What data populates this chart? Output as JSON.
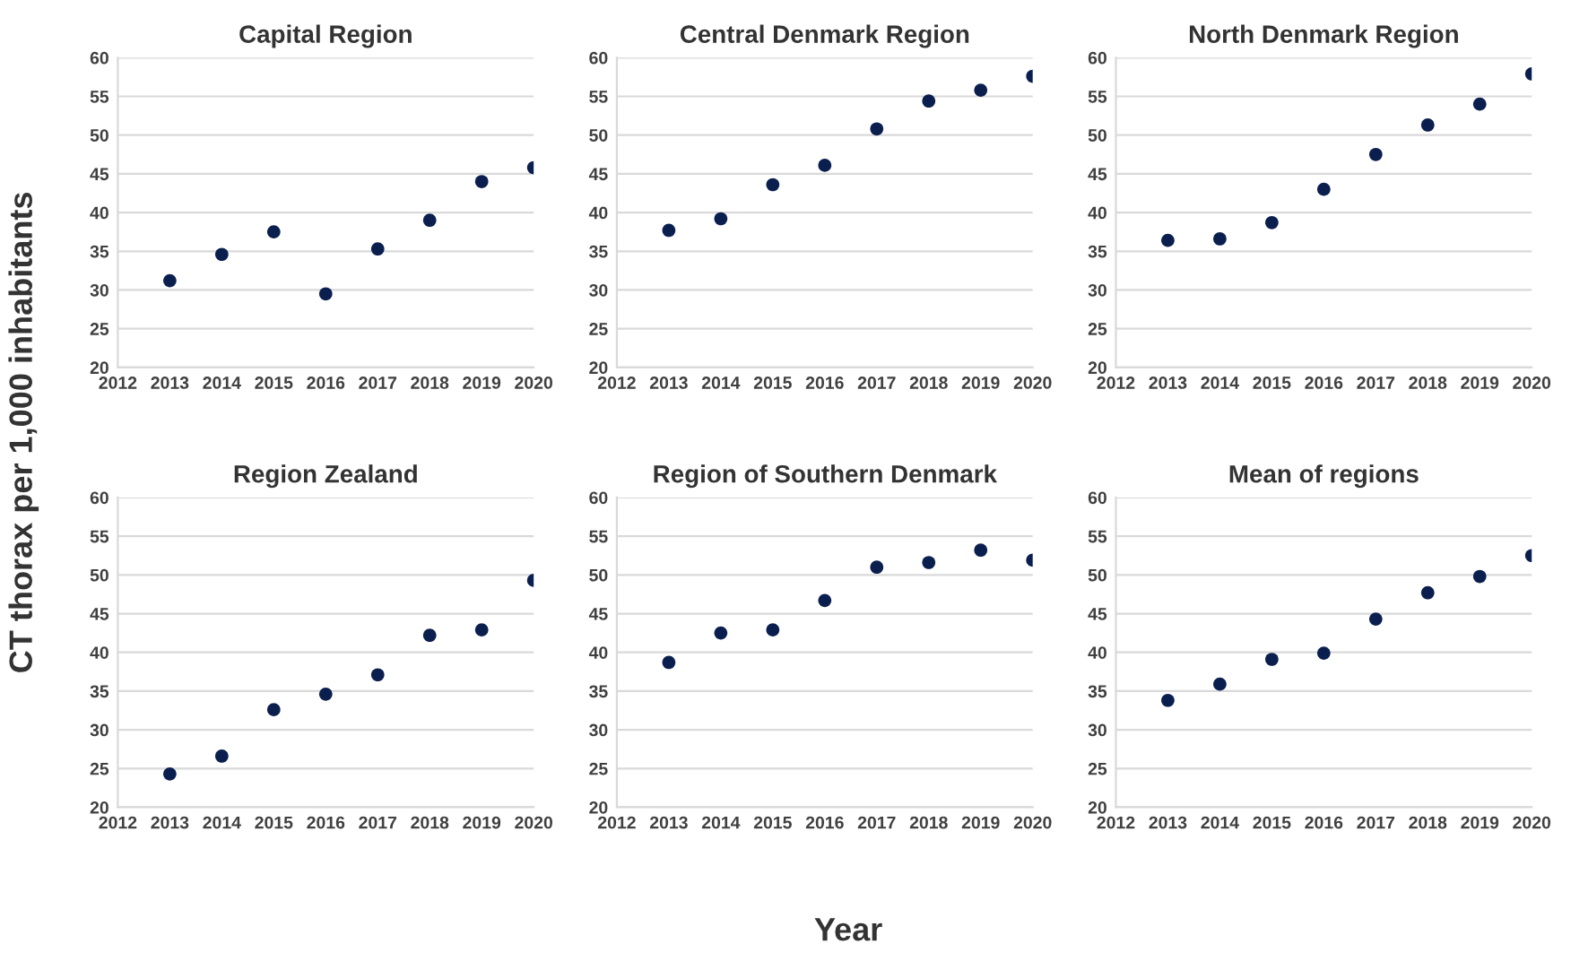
{
  "chart_data": [
    {
      "type": "scatter",
      "title": "Capital Region",
      "ylabel": "CT thorax per 1,000 inhabitants",
      "x": [
        2013,
        2014,
        2015,
        2016,
        2017,
        2018,
        2019,
        2020
      ],
      "series": [
        {
          "color": "#0b1f4f",
          "values": [
            31.2,
            34.6,
            37.5,
            29.5,
            35.3,
            39.0,
            44.0,
            45.8
          ]
        }
      ],
      "xlim": [
        2012,
        2020
      ],
      "xticks": [
        2012,
        2013,
        2014,
        2015,
        2016,
        2017,
        2018,
        2019,
        2020
      ],
      "ylim": [
        20,
        60
      ],
      "yticks": [
        20,
        25,
        30,
        35,
        40,
        45,
        50,
        55,
        60
      ],
      "grid": "y",
      "marker": "circle"
    },
    {
      "type": "scatter",
      "title": "Central Denmark Region",
      "x": [
        2013,
        2014,
        2015,
        2016,
        2017,
        2018,
        2019,
        2020
      ],
      "series": [
        {
          "color": "#0b1f4f",
          "values": [
            37.7,
            39.2,
            43.6,
            46.1,
            50.8,
            54.4,
            55.8,
            57.6
          ]
        }
      ],
      "xlim": [
        2012,
        2020
      ],
      "xticks": [
        2012,
        2013,
        2014,
        2015,
        2016,
        2017,
        2018,
        2019,
        2020
      ],
      "ylim": [
        20,
        60
      ],
      "yticks": [
        20,
        25,
        30,
        35,
        40,
        45,
        50,
        55,
        60
      ],
      "grid": "y",
      "marker": "circle"
    },
    {
      "type": "scatter",
      "title": "North Denmark Region",
      "x": [
        2013,
        2014,
        2015,
        2016,
        2017,
        2018,
        2019,
        2020
      ],
      "series": [
        {
          "color": "#0b1f4f",
          "values": [
            36.4,
            36.6,
            38.7,
            43.0,
            47.5,
            51.3,
            54.0,
            57.9
          ]
        }
      ],
      "xlim": [
        2012,
        2020
      ],
      "xticks": [
        2012,
        2013,
        2014,
        2015,
        2016,
        2017,
        2018,
        2019,
        2020
      ],
      "ylim": [
        20,
        60
      ],
      "yticks": [
        20,
        25,
        30,
        35,
        40,
        45,
        50,
        55,
        60
      ],
      "grid": "y",
      "marker": "circle"
    },
    {
      "type": "scatter",
      "title": "Region Zealand",
      "x": [
        2013,
        2014,
        2015,
        2016,
        2017,
        2018,
        2019,
        2020
      ],
      "series": [
        {
          "color": "#0b1f4f",
          "values": [
            24.3,
            26.6,
            32.6,
            34.6,
            37.1,
            42.2,
            42.9,
            49.3
          ]
        }
      ],
      "xlim": [
        2012,
        2020
      ],
      "xticks": [
        2012,
        2013,
        2014,
        2015,
        2016,
        2017,
        2018,
        2019,
        2020
      ],
      "ylim": [
        20,
        60
      ],
      "yticks": [
        20,
        25,
        30,
        35,
        40,
        45,
        50,
        55,
        60
      ],
      "grid": "y",
      "marker": "circle"
    },
    {
      "type": "scatter",
      "title": "Region of Southern Denmark",
      "xlabel": "Year",
      "x": [
        2013,
        2014,
        2015,
        2016,
        2017,
        2018,
        2019,
        2020
      ],
      "series": [
        {
          "color": "#0b1f4f",
          "values": [
            38.7,
            42.5,
            42.9,
            46.7,
            51.0,
            51.6,
            53.2,
            51.9
          ]
        }
      ],
      "xlim": [
        2012,
        2020
      ],
      "xticks": [
        2012,
        2013,
        2014,
        2015,
        2016,
        2017,
        2018,
        2019,
        2020
      ],
      "ylim": [
        20,
        60
      ],
      "yticks": [
        20,
        25,
        30,
        35,
        40,
        45,
        50,
        55,
        60
      ],
      "grid": "y",
      "marker": "circle"
    },
    {
      "type": "scatter",
      "title": "Mean of regions",
      "x": [
        2013,
        2014,
        2015,
        2016,
        2017,
        2018,
        2019,
        2020
      ],
      "series": [
        {
          "color": "#0b1f4f",
          "values": [
            33.8,
            35.9,
            39.1,
            39.9,
            44.3,
            47.7,
            49.8,
            52.5
          ]
        }
      ],
      "xlim": [
        2012,
        2020
      ],
      "xticks": [
        2012,
        2013,
        2014,
        2015,
        2016,
        2017,
        2018,
        2019,
        2020
      ],
      "ylim": [
        20,
        60
      ],
      "yticks": [
        20,
        25,
        30,
        35,
        40,
        45,
        50,
        55,
        60
      ],
      "grid": "y",
      "marker": "circle"
    }
  ]
}
